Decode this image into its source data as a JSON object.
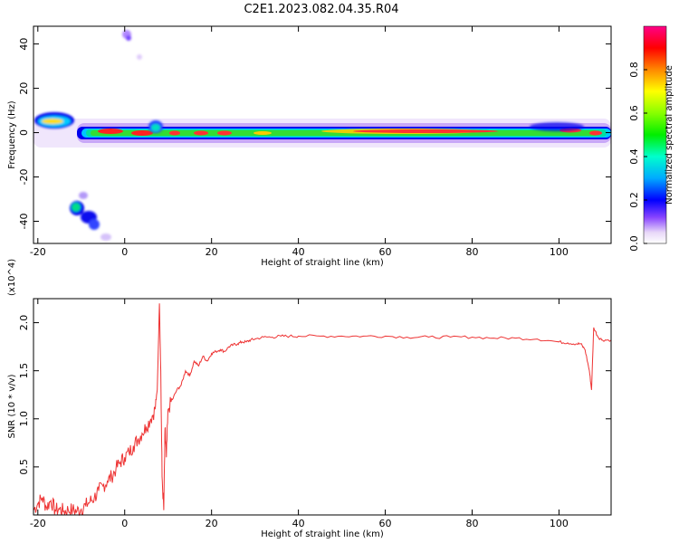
{
  "title": "C2E1.2023.082.04.35.R04",
  "spectrogram": {
    "xlabel": "Height of straight line (km)",
    "ylabel": "Frequency (Hz)",
    "xlim": [
      -21,
      112
    ],
    "ylim": [
      -50,
      48
    ],
    "xticks": [
      -20,
      0,
      20,
      40,
      60,
      80,
      100
    ],
    "yticks": [
      40,
      20,
      0,
      -20,
      -40
    ],
    "colorbar_label": "Normalized spectral amplitude",
    "colorbar_ticks": [
      0.0,
      0.2,
      0.4,
      0.6,
      0.8
    ],
    "colorbar_range": [
      0,
      1
    ]
  },
  "chart_data": {
    "type": "line",
    "title": "C2E1.2023.082.04.35.R04",
    "xlabel": "Height of straight line (km)",
    "ylabel": "SNR (10 * v/v)",
    "y_multiplier_label": "(x10^4)",
    "xlim": [
      -21,
      112
    ],
    "ylim": [
      0.0,
      2.25
    ],
    "xticks": [
      -20,
      0,
      20,
      40,
      60,
      80,
      100
    ],
    "yticks": [
      0.5,
      1.0,
      1.5,
      2.0
    ],
    "ytick_labels": [
      "0.5",
      "1.0",
      "1.5",
      "2.0"
    ],
    "color": "#ee3333",
    "series": [
      {
        "x": [
          -21,
          -20,
          -19,
          -18,
          -17,
          -16,
          -15,
          -14,
          -13,
          -12,
          -11,
          -10,
          -9,
          -8,
          -7,
          -6,
          -5,
          -4,
          -3,
          -2,
          -1,
          0,
          1,
          2,
          3,
          4,
          5,
          6,
          7,
          7.5,
          8,
          8.3,
          8.6,
          9,
          9.3,
          9.6,
          10,
          11,
          12,
          13,
          14,
          15,
          16,
          17,
          18,
          19,
          20,
          21,
          22,
          23,
          24,
          25,
          26,
          27,
          28,
          29,
          30,
          32,
          34,
          36,
          38,
          40,
          45,
          50,
          55,
          60,
          65,
          70,
          75,
          80,
          85,
          90,
          95,
          100,
          102,
          104,
          105,
          106,
          107,
          107.5,
          108,
          109,
          110,
          112
        ],
        "y": [
          0.05,
          0.12,
          0.18,
          0.08,
          0.15,
          0.05,
          0.06,
          0.04,
          0.05,
          0.05,
          0.04,
          0.06,
          0.1,
          0.14,
          0.18,
          0.25,
          0.3,
          0.35,
          0.4,
          0.48,
          0.55,
          0.6,
          0.65,
          0.72,
          0.78,
          0.85,
          0.92,
          1.0,
          1.1,
          1.3,
          2.2,
          1.5,
          0.4,
          0.05,
          0.9,
          0.6,
          1.1,
          1.2,
          1.3,
          1.35,
          1.5,
          1.45,
          1.6,
          1.55,
          1.65,
          1.6,
          1.68,
          1.7,
          1.72,
          1.7,
          1.75,
          1.77,
          1.78,
          1.8,
          1.8,
          1.82,
          1.83,
          1.85,
          1.85,
          1.86,
          1.86,
          1.86,
          1.86,
          1.86,
          1.86,
          1.86,
          1.85,
          1.85,
          1.85,
          1.85,
          1.84,
          1.84,
          1.83,
          1.8,
          1.79,
          1.78,
          1.78,
          1.72,
          1.5,
          1.3,
          1.95,
          1.85,
          1.82,
          1.82
        ]
      }
    ]
  }
}
